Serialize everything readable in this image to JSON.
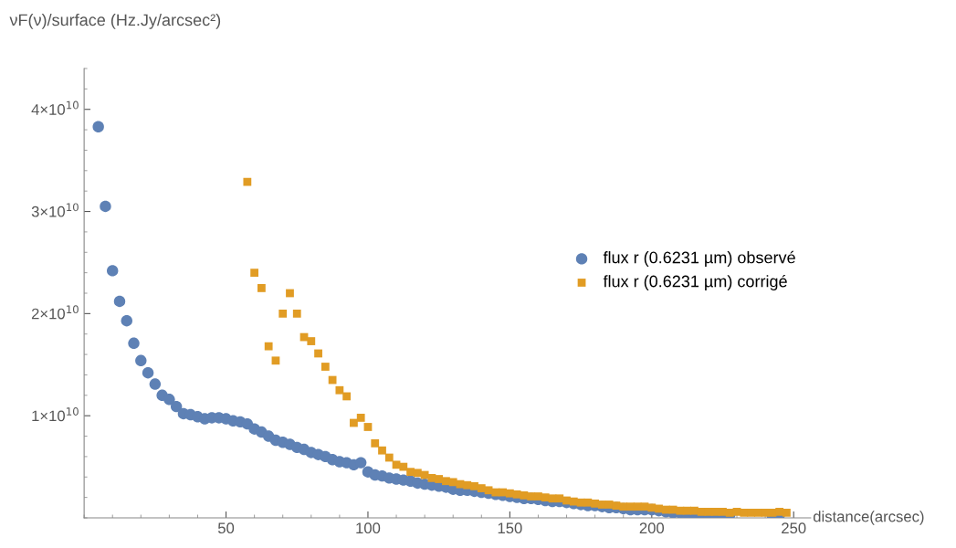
{
  "chart_data": {
    "type": "scatter",
    "xlabel": "distance(arcsec)",
    "ylabel": "νF(ν)/surface (Hz.Jy/arcsec²)",
    "xlim": [
      0,
      256
    ],
    "ylim": [
      0,
      44000000000.0
    ],
    "xticks": [
      50,
      100,
      150,
      200,
      250
    ],
    "yticks": [
      {
        "value": 10000000000.0,
        "label": "1×10$^{10}$"
      },
      {
        "value": 20000000000.0,
        "label": "2×10$^{10}$"
      },
      {
        "value": 30000000000.0,
        "label": "3×10$^{10}$"
      },
      {
        "value": 40000000000.0,
        "label": "4×10$^{10}$"
      }
    ],
    "grid": false,
    "legend": "right",
    "series": [
      {
        "name": "flux r (0.6231 µm) observé",
        "color": "#5e81b5",
        "marker": "circle",
        "x": [
          5,
          7.5,
          10,
          12.5,
          15,
          17.5,
          20,
          22.5,
          25,
          27.5,
          30,
          32.5,
          35,
          37.5,
          40,
          42.5,
          45,
          47.5,
          50,
          52.5,
          55,
          57.5,
          60,
          62.5,
          65,
          67.5,
          70,
          72.5,
          75,
          77.5,
          80,
          82.5,
          85,
          87.5,
          90,
          92.5,
          95,
          97.5,
          100,
          102.5,
          105,
          107.5,
          110,
          112.5,
          115,
          117.5,
          120,
          122.5,
          125,
          127.5,
          130,
          132.5,
          135,
          137.5,
          140,
          142.5,
          145,
          147.5,
          150,
          152.5,
          155,
          157.5,
          160,
          162.5,
          165,
          167.5,
          170,
          172.5,
          175,
          177.5,
          180,
          182.5,
          185,
          187.5,
          190,
          192.5,
          195,
          197.5,
          200,
          202.5,
          205,
          207.5,
          210,
          212.5,
          215,
          217.5,
          220,
          222.5,
          225,
          227.5,
          230,
          232.5,
          235,
          237.5,
          240,
          242.5,
          245
        ],
        "values": [
          38300000000.0,
          30500000000.0,
          24200000000.0,
          21200000000.0,
          19300000000.0,
          17100000000.0,
          15400000000.0,
          14200000000.0,
          13100000000.0,
          12000000000.0,
          11600000000.0,
          10900000000.0,
          10200000000.0,
          10100000000.0,
          9900000000.0,
          9700000000.0,
          9800000000.0,
          9800000000.0,
          9700000000.0,
          9500000000.0,
          9400000000.0,
          9200000000.0,
          8700000000.0,
          8400000000.0,
          8000000000.0,
          7600000000.0,
          7400000000.0,
          7200000000.0,
          6900000000.0,
          6700000000.0,
          6400000000.0,
          6200000000.0,
          6000000000.0,
          5700000000.0,
          5500000000.0,
          5400000000.0,
          5200000000.0,
          5400000000.0,
          4500000000.0,
          4200000000.0,
          4100000000.0,
          3900000000.0,
          3800000000.0,
          3700000000.0,
          3600000000.0,
          3400000000.0,
          3300000000.0,
          3200000000.0,
          3100000000.0,
          3000000000.0,
          2800000000.0,
          2700000000.0,
          2700000000.0,
          2600000000.0,
          2500000000.0,
          2400000000.0,
          2300000000.0,
          2200000000.0,
          2100000000.0,
          2000000000.0,
          1900000000.0,
          1900000000.0,
          1800000000.0,
          1700000000.0,
          1600000000.0,
          1600000000.0,
          1500000000.0,
          1400000000.0,
          1300000000.0,
          1200000000.0,
          1200000000.0,
          1100000000.0,
          1000000000.0,
          1000000000.0,
          900000000.0,
          800000000.0,
          800000000.0,
          800000000.0,
          800000000.0,
          700000000.0,
          600000000.0,
          500000000.0,
          500000000.0,
          400000000.0,
          400000000.0,
          400000000.0,
          300000000.0,
          300000000.0,
          300000000.0,
          300000000.0,
          null,
          null,
          null,
          null,
          null,
          200000000.0,
          300000000.0
        ]
      },
      {
        "name": "flux r (0.6231 µm) corrigé",
        "color": "#e19c24",
        "marker": "square",
        "x": [
          57.5,
          60,
          62.5,
          65,
          67.5,
          70,
          72.5,
          75,
          77.5,
          80,
          82.5,
          85,
          87.5,
          90,
          92.5,
          95,
          97.5,
          100,
          102.5,
          105,
          107.5,
          110,
          112.5,
          115,
          117.5,
          120,
          122.5,
          125,
          127.5,
          130,
          132.5,
          135,
          137.5,
          140,
          142.5,
          145,
          147.5,
          150,
          152.5,
          155,
          157.5,
          160,
          162.5,
          165,
          167.5,
          170,
          172.5,
          175,
          177.5,
          180,
          182.5,
          185,
          187.5,
          190,
          192.5,
          195,
          197.5,
          200,
          202.5,
          205,
          207.5,
          210,
          212.5,
          215,
          217.5,
          220,
          222.5,
          225,
          227.5,
          230,
          232.5,
          235,
          237.5,
          240,
          242.5,
          245,
          247.5
        ],
        "values": [
          32900000000.0,
          24000000000.0,
          22500000000.0,
          16800000000.0,
          15400000000.0,
          20000000000.0,
          22000000000.0,
          20000000000.0,
          17700000000.0,
          17300000000.0,
          16100000000.0,
          14800000000.0,
          13500000000.0,
          12500000000.0,
          11900000000.0,
          9300000000.0,
          9800000000.0,
          8900000000.0,
          7300000000.0,
          6600000000.0,
          5900000000.0,
          5200000000.0,
          5000000000.0,
          4500000000.0,
          4400000000.0,
          4200000000.0,
          3900000000.0,
          3800000000.0,
          3600000000.0,
          3500000000.0,
          3300000000.0,
          3200000000.0,
          3100000000.0,
          2900000000.0,
          2700000000.0,
          2500000000.0,
          2500000000.0,
          2400000000.0,
          2300000000.0,
          2200000000.0,
          2100000000.0,
          2100000000.0,
          2000000000.0,
          1900000000.0,
          1900000000.0,
          1700000000.0,
          1600000000.0,
          1500000000.0,
          1500000000.0,
          1400000000.0,
          1300000000.0,
          1300000000.0,
          1200000000.0,
          1100000000.0,
          1100000000.0,
          1100000000.0,
          1100000000.0,
          1000000000.0,
          900000000.0,
          800000000.0,
          800000000.0,
          700000000.0,
          700000000.0,
          700000000.0,
          600000000.0,
          600000000.0,
          600000000.0,
          600000000.0,
          500000000.0,
          600000000.0,
          500000000.0,
          500000000.0,
          500000000.0,
          500000000.0,
          500000000.0,
          600000000.0,
          500000000.0
        ]
      }
    ]
  }
}
